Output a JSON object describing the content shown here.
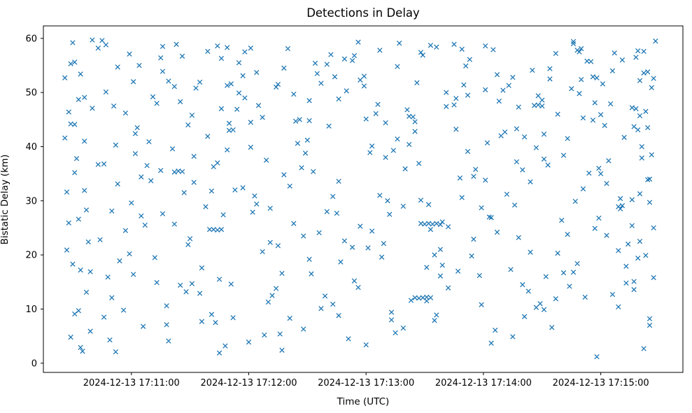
{
  "chart_data": {
    "type": "scatter",
    "title": "Detections in Delay",
    "xlabel": "Time (UTC)",
    "ylabel": "Bistatic Delay (km)",
    "marker": "x",
    "marker_color": "#1f77b4",
    "grid": false,
    "legend": "none",
    "x_unit": "seconds after 2024-12-13 17:10:15 UTC",
    "x_range": [
      0,
      327
    ],
    "y_range": [
      -1.7,
      62.3
    ],
    "x_ticks": [
      45,
      105,
      165,
      225,
      285
    ],
    "x_tick_labels": [
      "2024-12-13 17:11:00",
      "2024-12-13 17:12:00",
      "2024-12-13 17:13:00",
      "2024-12-13 17:14:00",
      "2024-12-13 17:15:00"
    ],
    "y_ticks": [
      0,
      10,
      20,
      30,
      40,
      50,
      60
    ],
    "y_tick_labels": [
      "0",
      "10",
      "20",
      "30",
      "40",
      "50",
      "60"
    ],
    "points": [
      [
        12,
        31.6
      ],
      [
        15,
        18.3
      ],
      [
        28,
        58.2
      ],
      [
        41,
        9.8
      ],
      [
        54,
        40.9
      ],
      [
        67,
        25.7
      ],
      [
        80,
        51.9
      ],
      [
        93,
        3.2
      ],
      [
        106,
        44.5
      ],
      [
        119,
        13.8
      ],
      [
        132,
        36.1
      ],
      [
        145,
        55.2
      ],
      [
        158,
        21.4
      ],
      [
        171,
        47.8
      ],
      [
        184,
        6.5
      ],
      [
        197,
        29.3
      ],
      [
        210,
        58.9
      ],
      [
        223,
        16.2
      ],
      [
        236,
        42.7
      ],
      [
        249,
        33.5
      ],
      [
        262,
        11.9
      ],
      [
        275,
        52.4
      ],
      [
        288,
        23.6
      ],
      [
        301,
        47.2
      ],
      [
        306,
        37.9
      ],
      [
        312,
        15.8
      ],
      [
        14,
        44.2
      ],
      [
        18,
        9.7
      ],
      [
        31,
        36.8
      ],
      [
        44,
        57.1
      ],
      [
        57,
        19.5
      ],
      [
        70,
        48.3
      ],
      [
        83,
        28.9
      ],
      [
        96,
        14.6
      ],
      [
        109,
        53.7
      ],
      [
        122,
        2.4
      ],
      [
        135,
        41.2
      ],
      [
        148,
        30.8
      ],
      [
        161,
        59.3
      ],
      [
        174,
        22.1
      ],
      [
        187,
        45.6
      ],
      [
        200,
        7.9
      ],
      [
        213,
        34.2
      ],
      [
        226,
        50.5
      ],
      [
        239,
        17.3
      ],
      [
        252,
        39.8
      ],
      [
        265,
        26.4
      ],
      [
        278,
        55.8
      ],
      [
        291,
        12.7
      ],
      [
        304,
        43.1
      ],
      [
        309,
        33.9
      ],
      [
        13,
        25.9
      ],
      [
        21,
        49.1
      ],
      [
        34,
        4.3
      ],
      [
        47,
        38.7
      ],
      [
        60,
        56.4
      ],
      [
        73,
        13.2
      ],
      [
        86,
        31.8
      ],
      [
        99,
        46.9
      ],
      [
        112,
        20.6
      ],
      [
        125,
        58.1
      ],
      [
        138,
        35.4
      ],
      [
        151,
        8.8
      ],
      [
        164,
        51.2
      ],
      [
        177,
        27.5
      ],
      [
        190,
        42.8
      ],
      [
        203,
        16.1
      ],
      [
        216,
        54.9
      ],
      [
        229,
        3.7
      ],
      [
        242,
        37.2
      ],
      [
        255,
        48.6
      ],
      [
        268,
        23.8
      ],
      [
        281,
        44.9
      ],
      [
        294,
        10.4
      ],
      [
        307,
        57.6
      ],
      [
        310,
        29.7
      ],
      [
        11,
        52.7
      ],
      [
        24,
        16.9
      ],
      [
        37,
        40.3
      ],
      [
        50,
        27.2
      ],
      [
        63,
        7.1
      ],
      [
        76,
        45.8
      ],
      [
        89,
        58.6
      ],
      [
        102,
        32.4
      ],
      [
        115,
        11.3
      ],
      [
        128,
        49.7
      ],
      [
        141,
        24.1
      ],
      [
        154,
        56.2
      ],
      [
        167,
        38.9
      ],
      [
        180,
        5.6
      ],
      [
        193,
        30.1
      ],
      [
        206,
        47.4
      ],
      [
        219,
        19.8
      ],
      [
        232,
        53.3
      ],
      [
        245,
        14.5
      ],
      [
        258,
        36.6
      ],
      [
        271,
        59.0
      ],
      [
        284,
        26.8
      ],
      [
        297,
        41.7
      ],
      [
        310,
        8.2
      ],
      [
        311,
        50.9
      ],
      [
        16,
        9.1
      ],
      [
        16,
        55.6
      ],
      [
        29,
        22.8
      ],
      [
        42,
        46.2
      ],
      [
        55,
        33.7
      ],
      [
        68,
        58.9
      ],
      [
        81,
        17.6
      ],
      [
        94,
        39.4
      ],
      [
        107,
        27.9
      ],
      [
        120,
        51.5
      ],
      [
        133,
        6.3
      ],
      [
        146,
        43.8
      ],
      [
        159,
        15.2
      ],
      [
        172,
        57.8
      ],
      [
        185,
        35.9
      ],
      [
        198,
        24.7
      ],
      [
        211,
        48.9
      ],
      [
        224,
        10.8
      ],
      [
        237,
        31.2
      ],
      [
        250,
        54.1
      ],
      [
        263,
        20.3
      ],
      [
        276,
        45.3
      ],
      [
        289,
        37.4
      ],
      [
        302,
        13.6
      ],
      [
        305,
        52.2
      ],
      [
        17,
        37.8
      ],
      [
        19,
        2.9
      ],
      [
        32,
        50.1
      ],
      [
        45,
        29.6
      ],
      [
        58,
        14.9
      ],
      [
        71,
        56.7
      ],
      [
        84,
        41.9
      ],
      [
        97,
        8.4
      ],
      [
        110,
        47.6
      ],
      [
        123,
        34.8
      ],
      [
        136,
        19.2
      ],
      [
        149,
        52.9
      ],
      [
        162,
        25.3
      ],
      [
        175,
        44.4
      ],
      [
        188,
        11.6
      ],
      [
        201,
        58.4
      ],
      [
        214,
        30.6
      ],
      [
        227,
        40.7
      ],
      [
        240,
        4.9
      ],
      [
        253,
        49.4
      ],
      [
        266,
        16.7
      ],
      [
        279,
        35.1
      ],
      [
        292,
        57.3
      ],
      [
        305,
        22.5
      ],
      [
        308,
        46.5
      ],
      [
        15,
        59.2
      ],
      [
        22,
        28.3
      ],
      [
        35,
        12.1
      ],
      [
        48,
        43.5
      ],
      [
        61,
        53.9
      ],
      [
        74,
        21.9
      ],
      [
        87,
        36.3
      ],
      [
        100,
        49.9
      ],
      [
        113,
        5.2
      ],
      [
        126,
        32.7
      ],
      [
        139,
        55.4
      ],
      [
        152,
        18.7
      ],
      [
        165,
        45.1
      ],
      [
        178,
        9.4
      ],
      [
        191,
        51.8
      ],
      [
        204,
        26.1
      ],
      [
        217,
        39.1
      ],
      [
        230,
        57.9
      ],
      [
        243,
        23.2
      ],
      [
        256,
        42.3
      ],
      [
        269,
        14.2
      ],
      [
        282,
        48.1
      ],
      [
        295,
        30.4
      ],
      [
        307,
        53.6
      ],
      [
        308,
        19.9
      ],
      [
        12,
        20.9
      ],
      [
        25,
        47.1
      ],
      [
        38,
        33.1
      ],
      [
        51,
        6.8
      ],
      [
        64,
        52.1
      ],
      [
        77,
        38.2
      ],
      [
        90,
        15.5
      ],
      [
        103,
        57.5
      ],
      [
        116,
        28.6
      ],
      [
        129,
        44.7
      ],
      [
        142,
        10.1
      ],
      [
        155,
        50.3
      ],
      [
        168,
        24.4
      ],
      [
        181,
        41.4
      ],
      [
        194,
        56.9
      ],
      [
        207,
        13.9
      ],
      [
        220,
        34.5
      ],
      [
        233,
        48.4
      ],
      [
        246,
        8.6
      ],
      [
        259,
        54.4
      ],
      [
        272,
        29.9
      ],
      [
        285,
        45.9
      ],
      [
        298,
        17.9
      ],
      [
        311,
        38.5
      ],
      [
        313,
        59.5
      ],
      [
        18,
        48.7
      ],
      [
        18,
        26.6
      ],
      [
        32,
        58.8
      ],
      [
        46,
        16.4
      ],
      [
        60,
        35.6
      ],
      [
        74,
        44.0
      ],
      [
        88,
        7.5
      ],
      [
        102,
        53.1
      ],
      [
        116,
        22.3
      ],
      [
        130,
        40.6
      ],
      [
        144,
        12.4
      ],
      [
        158,
        55.9
      ],
      [
        172,
        31.0
      ],
      [
        186,
        46.8
      ],
      [
        200,
        20.0
      ],
      [
        214,
        58.0
      ],
      [
        228,
        27.0
      ],
      [
        242,
        43.3
      ],
      [
        256,
        9.9
      ],
      [
        270,
        50.7
      ],
      [
        284,
        36.0
      ],
      [
        298,
        14.8
      ],
      [
        312,
        52.6
      ],
      [
        312,
        25.0
      ],
      [
        19,
        17.2
      ],
      [
        21,
        41.0
      ],
      [
        35,
        28.1
      ],
      [
        49,
        55.0
      ],
      [
        63,
        10.6
      ],
      [
        77,
        33.4
      ],
      [
        91,
        47.0
      ],
      [
        105,
        3.9
      ],
      [
        119,
        51.0
      ],
      [
        133,
        23.5
      ],
      [
        147,
        57.0
      ],
      [
        161,
        14.0
      ],
      [
        175,
        38.0
      ],
      [
        189,
        45.5
      ],
      [
        203,
        21.0
      ],
      [
        217,
        49.5
      ],
      [
        231,
        6.1
      ],
      [
        245,
        35.7
      ],
      [
        259,
        52.5
      ],
      [
        273,
        18.4
      ],
      [
        287,
        43.9
      ],
      [
        301,
        30.2
      ],
      [
        303,
        56.5
      ],
      [
        13,
        46.4
      ],
      [
        24,
        5.9
      ],
      [
        38,
        54.7
      ],
      [
        52,
        25.5
      ],
      [
        66,
        39.6
      ],
      [
        80,
        12.9
      ],
      [
        94,
        58.3
      ],
      [
        108,
        30.9
      ],
      [
        122,
        16.6
      ],
      [
        136,
        44.8
      ],
      [
        150,
        27.7
      ],
      [
        164,
        53.0
      ],
      [
        178,
        8.0
      ],
      [
        192,
        36.9
      ],
      [
        206,
        50.0
      ],
      [
        220,
        22.9
      ],
      [
        234,
        42.0
      ],
      [
        248,
        13.3
      ],
      [
        262,
        57.2
      ],
      [
        276,
        32.2
      ],
      [
        290,
        47.9
      ],
      [
        304,
        19.4
      ],
      [
        306,
        40.0
      ],
      [
        20,
        2.2
      ],
      [
        16,
        44.1
      ],
      [
        30,
        59.6
      ],
      [
        44,
        20.2
      ],
      [
        58,
        48.0
      ],
      [
        72,
        31.5
      ],
      [
        86,
        9.0
      ],
      [
        100,
        55.5
      ],
      [
        114,
        37.5
      ],
      [
        128,
        25.8
      ],
      [
        142,
        51.7
      ],
      [
        156,
        4.5
      ],
      [
        170,
        46.1
      ],
      [
        184,
        29.0
      ],
      [
        198,
        58.7
      ],
      [
        212,
        17.0
      ],
      [
        226,
        33.8
      ],
      [
        240,
        52.8
      ],
      [
        254,
        11.0
      ],
      [
        268,
        41.5
      ],
      [
        282,
        24.9
      ],
      [
        296,
        56.0
      ],
      [
        310,
        34.0
      ],
      [
        310,
        7.0
      ],
      [
        21,
        31.9
      ],
      [
        19,
        53.4
      ],
      [
        33,
        15.9
      ],
      [
        47,
        42.4
      ],
      [
        61,
        58.5
      ],
      [
        75,
        23.0
      ],
      [
        89,
        37.0
      ],
      [
        103,
        49.0
      ],
      [
        117,
        12.5
      ],
      [
        131,
        45.0
      ],
      [
        145,
        28.0
      ],
      [
        159,
        56.8
      ],
      [
        173,
        19.6
      ],
      [
        187,
        40.4
      ],
      [
        201,
        8.9
      ],
      [
        215,
        51.4
      ],
      [
        229,
        26.9
      ],
      [
        243,
        47.3
      ],
      [
        257,
        16.0
      ],
      [
        271,
        59.4
      ],
      [
        285,
        35.0
      ],
      [
        299,
        22.0
      ],
      [
        309,
        53.8
      ],
      [
        309,
        43.5
      ],
      [
        14,
        55.3
      ],
      [
        22,
        13.1
      ],
      [
        36,
        47.5
      ],
      [
        50,
        34.4
      ],
      [
        64,
        4.1
      ],
      [
        78,
        50.8
      ],
      [
        92,
        27.4
      ],
      [
        106,
        58.2
      ],
      [
        120,
        21.7
      ],
      [
        134,
        38.8
      ],
      [
        148,
        10.9
      ],
      [
        162,
        52.3
      ],
      [
        176,
        30.0
      ],
      [
        190,
        44.6
      ],
      [
        204,
        18.1
      ],
      [
        218,
        56.1
      ],
      [
        232,
        24.2
      ],
      [
        246,
        41.8
      ],
      [
        260,
        6.6
      ],
      [
        274,
        49.8
      ],
      [
        288,
        33.2
      ],
      [
        302,
        15.1
      ],
      [
        304,
        57.7
      ],
      [
        11,
        41.6
      ],
      [
        25,
        59.7
      ],
      [
        39,
        18.9
      ],
      [
        53,
        36.5
      ],
      [
        67,
        51.1
      ],
      [
        81,
        7.7
      ],
      [
        95,
        44.3
      ],
      [
        109,
        29.4
      ],
      [
        123,
        54.5
      ],
      [
        137,
        16.5
      ],
      [
        151,
        48.8
      ],
      [
        165,
        3.4
      ],
      [
        179,
        39.3
      ],
      [
        193,
        57.4
      ],
      [
        207,
        25.2
      ],
      [
        221,
        35.8
      ],
      [
        235,
        50.4
      ],
      [
        249,
        20.5
      ],
      [
        263,
        46.0
      ],
      [
        277,
        12.2
      ],
      [
        291,
        54.0
      ],
      [
        305,
        31.3
      ],
      [
        305,
        45.7
      ],
      [
        14,
        4.8
      ],
      [
        28,
        36.7
      ],
      [
        42,
        24.5
      ],
      [
        56,
        49.2
      ],
      [
        70,
        14.4
      ],
      [
        84,
        57.6
      ],
      [
        98,
        32.0
      ],
      [
        112,
        45.4
      ],
      [
        126,
        8.3
      ],
      [
        140,
        53.5
      ],
      [
        154,
        22.6
      ],
      [
        168,
        40.1
      ],
      [
        182,
        59.1
      ],
      [
        196,
        17.7
      ],
      [
        210,
        47.7
      ],
      [
        224,
        28.7
      ],
      [
        238,
        51.3
      ],
      [
        252,
        10.3
      ],
      [
        266,
        38.4
      ],
      [
        280,
        55.7
      ],
      [
        294,
        20.8
      ],
      [
        302,
        43.7
      ],
      [
        307,
        2.7
      ],
      [
        23,
        22.4
      ],
      [
        16,
        35.2
      ],
      [
        31,
        8.5
      ],
      [
        46,
        52.0
      ],
      [
        61,
        27.6
      ],
      [
        76,
        14.7
      ],
      [
        91,
        56.3
      ],
      [
        106,
        39.9
      ],
      [
        121,
        5.4
      ],
      [
        136,
        48.5
      ],
      [
        151,
        33.6
      ],
      [
        166,
        21.3
      ],
      [
        181,
        54.8
      ],
      [
        196,
        11.5
      ],
      [
        211,
        43.2
      ],
      [
        226,
        58.6
      ],
      [
        241,
        29.2
      ],
      [
        256,
        37.7
      ],
      [
        271,
        16.8
      ],
      [
        286,
        51.6
      ],
      [
        301,
        25.4
      ],
      [
        303,
        47.0
      ],
      [
        193,
        25.8
      ],
      [
        195,
        25.7
      ],
      [
        197,
        25.8
      ],
      [
        199,
        25.7
      ],
      [
        201,
        25.8
      ],
      [
        203,
        25.6
      ],
      [
        85,
        24.7
      ],
      [
        87,
        24.7
      ],
      [
        89,
        24.6
      ],
      [
        91,
        24.7
      ],
      [
        190,
        12.1
      ],
      [
        192,
        12.0
      ],
      [
        194,
        12.1
      ],
      [
        196,
        12.2
      ],
      [
        198,
        12.1
      ],
      [
        67,
        35.3
      ],
      [
        69,
        35.5
      ],
      [
        71,
        35.4
      ],
      [
        251,
        47.6
      ],
      [
        253,
        47.7
      ],
      [
        255,
        47.5
      ],
      [
        294,
        28.9
      ],
      [
        296,
        29.1
      ],
      [
        295,
        28.5
      ],
      [
        95,
        43.0
      ],
      [
        97,
        43.1
      ],
      [
        94,
        51.3
      ],
      [
        96,
        51.6
      ],
      [
        273,
        57.8
      ],
      [
        275,
        58.1
      ],
      [
        274,
        57.5
      ],
      [
        281,
        52.9
      ],
      [
        283,
        52.7
      ],
      [
        37,
        2.1
      ],
      [
        90,
        1.9
      ],
      [
        283,
        1.2
      ]
    ]
  }
}
